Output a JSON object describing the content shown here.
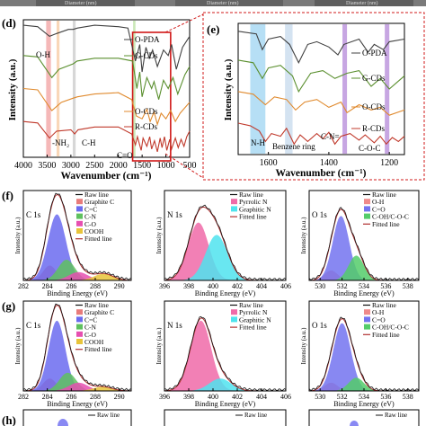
{
  "top_strip": [
    "Diameter (nm)",
    "Diameter (nm)",
    "Diameter (nm)"
  ],
  "chart_data": [
    {
      "panel": "d",
      "type": "line",
      "xlabel": "Wavenumber (cm⁻¹)",
      "ylabel": "Intensity (a.u.)",
      "xlim": [
        4000,
        500
      ],
      "reversed_x": true,
      "xticks": [
        4000,
        3500,
        3000,
        2500,
        2000,
        1500,
        1000,
        500
      ],
      "series": [
        {
          "name": "O-PDA",
          "color": "#404040",
          "x": [
            4000,
            3700,
            3450,
            3300,
            3050,
            2950,
            2860,
            2500,
            2000,
            1800,
            1640,
            1550,
            1500,
            1420,
            1350,
            1280,
            1180,
            1050,
            950,
            880,
            780,
            650,
            500
          ],
          "y": [
            0.96,
            0.95,
            0.88,
            0.9,
            0.93,
            0.93,
            0.94,
            0.96,
            0.95,
            0.94,
            0.7,
            0.82,
            0.62,
            0.8,
            0.72,
            0.78,
            0.66,
            0.78,
            0.74,
            0.82,
            0.64,
            0.8,
            0.88
          ]
        },
        {
          "name": "G-CDs",
          "color": "#5a8f2e",
          "x": [
            4000,
            3700,
            3400,
            3250,
            2950,
            2870,
            2500,
            2000,
            1700,
            1610,
            1550,
            1500,
            1400,
            1300,
            1250,
            1150,
            1050,
            950,
            850,
            750,
            600,
            500
          ],
          "y": [
            0.74,
            0.73,
            0.58,
            0.64,
            0.68,
            0.7,
            0.72,
            0.72,
            0.7,
            0.5,
            0.62,
            0.44,
            0.58,
            0.5,
            0.55,
            0.42,
            0.56,
            0.5,
            0.58,
            0.46,
            0.6,
            0.66
          ]
        },
        {
          "name": "O-CDs",
          "color": "#e08a2e",
          "x": [
            4000,
            3700,
            3400,
            3200,
            2950,
            2860,
            2500,
            2000,
            1720,
            1620,
            1500,
            1400,
            1330,
            1250,
            1180,
            1100,
            1000,
            900,
            800,
            700,
            600,
            500
          ],
          "y": [
            0.5,
            0.49,
            0.34,
            0.4,
            0.43,
            0.44,
            0.46,
            0.47,
            0.42,
            0.3,
            0.28,
            0.35,
            0.26,
            0.33,
            0.24,
            0.32,
            0.28,
            0.34,
            0.26,
            0.32,
            0.36,
            0.4
          ]
        },
        {
          "name": "R-CDs",
          "color": "#c0392b",
          "x": [
            4000,
            3700,
            3450,
            3300,
            3000,
            2920,
            2850,
            2500,
            2000,
            1720,
            1640,
            1600,
            1520,
            1480,
            1400,
            1340,
            1300,
            1240,
            1180,
            1120,
            1080,
            1030,
            980,
            920,
            880,
            800,
            740,
            680,
            620,
            560,
            500
          ],
          "y": [
            0.26,
            0.25,
            0.14,
            0.19,
            0.2,
            0.17,
            0.2,
            0.22,
            0.22,
            0.17,
            0.09,
            0.15,
            0.05,
            0.14,
            0.08,
            0.15,
            0.06,
            0.12,
            0.04,
            0.14,
            0.07,
            0.15,
            0.05,
            0.13,
            0.06,
            0.14,
            0.07,
            0.13,
            0.08,
            0.15,
            0.19
          ]
        }
      ],
      "annotations": [
        "O-H",
        "-NH₂",
        "C-H",
        "C=O"
      ]
    },
    {
      "panel": "e",
      "type": "line",
      "xlabel": "Wavenumber (cm⁻¹)",
      "ylabel": "Intensity (a.u.)",
      "xlim": [
        1700,
        1150
      ],
      "reversed_x": true,
      "xticks": [
        1600,
        1400,
        1200
      ],
      "series": [
        {
          "name": "O-PDA",
          "color": "#404040",
          "x": [
            1700,
            1640,
            1620,
            1600,
            1560,
            1530,
            1500,
            1470,
            1440,
            1400,
            1370,
            1350,
            1300,
            1270,
            1250,
            1220,
            1200,
            1150
          ],
          "y": [
            0.94,
            0.92,
            0.8,
            0.88,
            0.9,
            0.84,
            0.7,
            0.84,
            0.86,
            0.82,
            0.76,
            0.84,
            0.88,
            0.78,
            0.84,
            0.8,
            0.86,
            0.88
          ]
        },
        {
          "name": "G-CDs",
          "color": "#5a8f2e",
          "x": [
            1700,
            1650,
            1620,
            1600,
            1560,
            1520,
            1500,
            1460,
            1420,
            1380,
            1340,
            1300,
            1260,
            1230,
            1200,
            1180,
            1150
          ],
          "y": [
            0.72,
            0.7,
            0.58,
            0.66,
            0.68,
            0.6,
            0.48,
            0.62,
            0.64,
            0.58,
            0.62,
            0.64,
            0.52,
            0.58,
            0.5,
            0.54,
            0.6
          ]
        },
        {
          "name": "O-CDs",
          "color": "#e08a2e",
          "x": [
            1700,
            1650,
            1610,
            1580,
            1540,
            1510,
            1480,
            1440,
            1400,
            1360,
            1340,
            1300,
            1260,
            1230,
            1200,
            1150
          ],
          "y": [
            0.48,
            0.46,
            0.38,
            0.44,
            0.42,
            0.34,
            0.4,
            0.42,
            0.36,
            0.4,
            0.32,
            0.38,
            0.34,
            0.36,
            0.3,
            0.34
          ]
        },
        {
          "name": "R-CDs",
          "color": "#c0392b",
          "x": [
            1700,
            1660,
            1630,
            1610,
            1590,
            1560,
            1540,
            1515,
            1495,
            1470,
            1440,
            1420,
            1400,
            1380,
            1360,
            1330,
            1300,
            1280,
            1250,
            1230,
            1210,
            1190,
            1170,
            1150
          ],
          "y": [
            0.24,
            0.22,
            0.18,
            0.1,
            0.16,
            0.14,
            0.2,
            0.08,
            0.15,
            0.1,
            0.16,
            0.12,
            0.17,
            0.08,
            0.14,
            0.16,
            0.11,
            0.15,
            0.09,
            0.14,
            0.08,
            0.13,
            0.1,
            0.14
          ]
        }
      ],
      "annotations": [
        "N-H",
        "Benzene ring",
        "C-N=",
        "C-O-C"
      ]
    },
    {
      "panel": "f",
      "type": "line",
      "element": "C 1s",
      "xlabel": "Binding Energy (eV)",
      "ylabel": "Intensity (a.u.)",
      "xlim": [
        282,
        291
      ],
      "xticks": [
        282,
        284,
        286,
        288,
        290
      ],
      "legend": [
        "Raw line",
        "Graphite C",
        "C=C",
        "C-N",
        "C-O",
        "COOH",
        "Fitted line"
      ]
    },
    {
      "panel": "f",
      "type": "line",
      "element": "N 1s",
      "xlabel": "Binding Energy (eV)",
      "ylabel": "Intensity (a.u.)",
      "xlim": [
        396,
        406
      ],
      "xticks": [
        396,
        398,
        400,
        402,
        404,
        406
      ],
      "legend": [
        "Raw line",
        "Pyrrolic N",
        "Graphitic N",
        "Fitted line"
      ]
    },
    {
      "panel": "f",
      "type": "line",
      "element": "O 1s",
      "xlabel": "Binding Energy (eV)",
      "ylabel": "Intensity (a.u.)",
      "xlim": [
        529,
        539
      ],
      "xticks": [
        530,
        532,
        534,
        536,
        538
      ],
      "legend": [
        "Raw line",
        "O-H",
        "C=O",
        "C-OH/C-O-C",
        "Fitted line"
      ]
    },
    {
      "panel": "g",
      "type": "line",
      "element": "C 1s",
      "xlabel": "Binding Energy (eV)",
      "ylabel": "Intensity (a.u.)",
      "xlim": [
        282,
        291
      ],
      "xticks": [
        282,
        284,
        286,
        288,
        290
      ],
      "legend": [
        "Raw line",
        "Graphite C",
        "C=C",
        "C-N",
        "C-O",
        "COOH",
        "Fitted line"
      ]
    },
    {
      "panel": "g",
      "type": "line",
      "element": "N 1s",
      "xlabel": "Binding Energy (eV)",
      "ylabel": "Intensity (a.u.)",
      "xlim": [
        396,
        406
      ],
      "xticks": [
        396,
        398,
        400,
        402,
        404,
        406
      ],
      "legend": [
        "Raw line",
        "Pyrrolic N",
        "Graphitic N",
        "Fitted line"
      ]
    },
    {
      "panel": "g",
      "type": "line",
      "element": "O 1s",
      "xlabel": "Binding Energy (eV)",
      "ylabel": "Intensity (a.u.)",
      "xlim": [
        529,
        539
      ],
      "xticks": [
        530,
        532,
        534,
        536,
        538
      ],
      "legend": [
        "Raw line",
        "O-H",
        "C=O",
        "C-OH/C-O-C",
        "Fitted line"
      ]
    }
  ],
  "panel_h": {
    "label": "(h)",
    "legend": [
      "Raw line",
      "Raw line",
      "Raw line"
    ]
  },
  "colors": {
    "graphite_c": "#e87b7b",
    "c_eq_c": "#6b6bf0",
    "c_n": "#5fc15f",
    "c_o": "#e64fb0",
    "cooh": "#e8c43a",
    "pyrrolic_n": "#f06aa8",
    "graphitic_n": "#4fe3ee",
    "o_h": "#ef8a8a",
    "c_eq_o": "#7373f0",
    "c_oh": "#54cc6a",
    "raw": "#111111",
    "fit": "#b03030"
  }
}
